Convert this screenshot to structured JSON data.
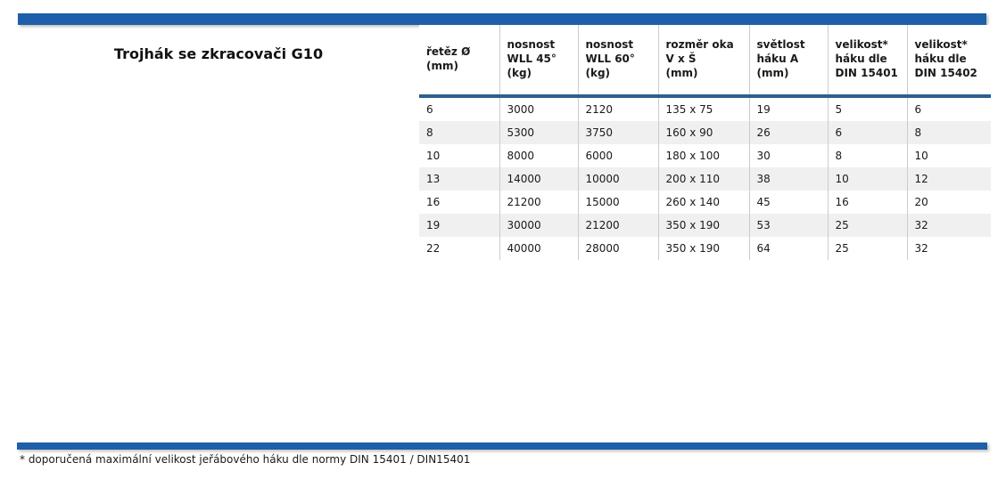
{
  "title": "Trojhák se zkracovači G10",
  "accent_color": "#1e5fa9",
  "header_underline_color": "#2a6190",
  "stripe_color": "#f0f0f0",
  "table": {
    "headers": [
      "řetěz Ø\n(mm)",
      "nosnost\nWLL 45°\n(kg)",
      "nosnost\nWLL 60°\n(kg)",
      "rozměr oka\nV x Š\n(mm)",
      "světlost\nháku A\n(mm)",
      "velikost*\nháku dle\nDIN 15401",
      "velikost*\nháku dle\nDIN 15402"
    ],
    "rows": [
      [
        "6",
        "3000",
        "2120",
        "135 x 75",
        "19",
        "5",
        "6"
      ],
      [
        "8",
        "5300",
        "3750",
        "160 x 90",
        "26",
        "6",
        "8"
      ],
      [
        "10",
        "8000",
        "6000",
        "180 x 100",
        "30",
        "8",
        "10"
      ],
      [
        "13",
        "14000",
        "10000",
        "200 x 110",
        "38",
        "10",
        "12"
      ],
      [
        "16",
        "21200",
        "15000",
        "260 x 140",
        "45",
        "16",
        "20"
      ],
      [
        "19",
        "30000",
        "21200",
        "350 x 190",
        "53",
        "25",
        "32"
      ],
      [
        "22",
        "40000",
        "28000",
        "350 x 190",
        "64",
        "25",
        "32"
      ]
    ]
  },
  "footnote": "* doporučená maximální velikost jeřábového háku dle normy DIN 15401 / DIN15401"
}
